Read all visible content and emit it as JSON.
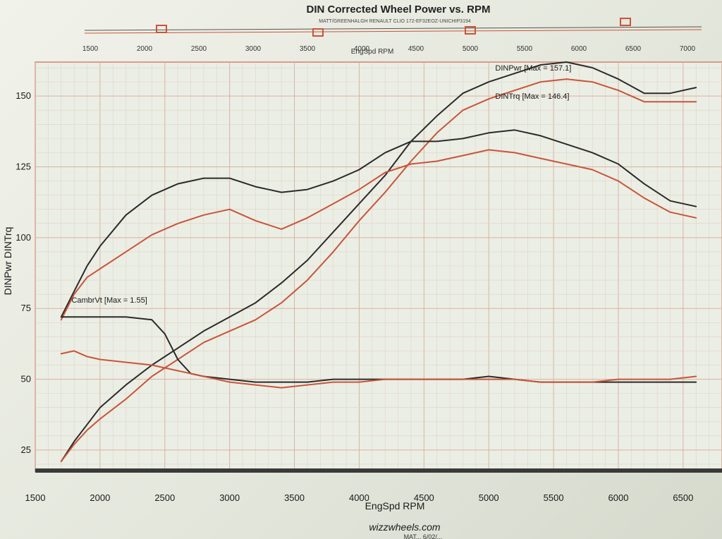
{
  "page": {
    "title": "DIN Corrected Wheel Power vs. RPM",
    "subtitle": "MATT/GREENHALGH RENAULT CLIO 172-EF32EOZ-UNICHIP3194",
    "top_axis_label": "EngSpd RPM",
    "top_ticks": [
      "1500",
      "2000",
      "2500",
      "3000",
      "3500",
      "4000",
      "4500",
      "5000",
      "5500",
      "6000",
      "6500",
      "7000"
    ],
    "footer": "wizzwheels.com",
    "footer_small": "MAT... 6/02/..."
  },
  "chart_data": {
    "type": "line",
    "title": "DIN Corrected Wheel Power vs. RPM",
    "xlabel": "EngSpd RPM",
    "ylabel": "DINPwr DINTrq",
    "xlim": [
      1500,
      6800
    ],
    "ylim": [
      18,
      162
    ],
    "x_ticks": [
      1500,
      2000,
      2500,
      3000,
      3500,
      4000,
      4500,
      5000,
      5500,
      6000,
      6500
    ],
    "y_ticks": [
      25,
      50,
      75,
      100,
      125,
      150
    ],
    "grid": true,
    "annotations": [
      {
        "text": "DINPwr [Max = 157.1]",
        "x": 5050,
        "y": 159
      },
      {
        "text": "DINTrq [Max = 146.4]",
        "x": 5050,
        "y": 149
      },
      {
        "text": "CambrVt [Max = 1.55]",
        "x": 1780,
        "y": 77
      }
    ],
    "series": [
      {
        "color": "#2a2a2a",
        "x": [
          1700,
          1800,
          1900,
          2000,
          2200,
          2400,
          2600,
          2800,
          3000,
          3200,
          3400,
          3600,
          3800,
          4000,
          4200,
          4400,
          4600,
          4800,
          5000,
          5200,
          5400,
          5600,
          5800,
          6000,
          6200,
          6400,
          6600
        ],
        "values": [
          21,
          28,
          34,
          40,
          48,
          55,
          61,
          67,
          72,
          77,
          84,
          92,
          102,
          112,
          122,
          134,
          143,
          151,
          155,
          158,
          161,
          162,
          160,
          156,
          151,
          151,
          153
        ]
      },
      {
        "color": "#c8553a",
        "x": [
          1700,
          1800,
          1900,
          2000,
          2200,
          2400,
          2600,
          2800,
          3000,
          3200,
          3400,
          3600,
          3800,
          4000,
          4200,
          4400,
          4600,
          4800,
          5000,
          5200,
          5400,
          5600,
          5800,
          6000,
          6200,
          6400,
          6600
        ],
        "values": [
          21,
          27,
          32,
          36,
          43,
          51,
          57,
          63,
          67,
          71,
          77,
          85,
          95,
          106,
          116,
          127,
          137,
          145,
          149,
          152,
          155,
          156,
          155,
          152,
          148,
          148,
          148
        ]
      },
      {
        "color": "#2a2a2a",
        "x": [
          1700,
          1800,
          1900,
          2000,
          2200,
          2400,
          2600,
          2800,
          3000,
          3200,
          3400,
          3600,
          3800,
          4000,
          4200,
          4400,
          4600,
          4800,
          5000,
          5200,
          5400,
          5600,
          5800,
          6000,
          6200,
          6400,
          6600
        ],
        "values": [
          72,
          81,
          90,
          97,
          108,
          115,
          119,
          121,
          121,
          118,
          116,
          117,
          120,
          124,
          130,
          134,
          134,
          135,
          137,
          138,
          136,
          133,
          130,
          126,
          119,
          113,
          111
        ]
      },
      {
        "color": "#c8553a",
        "x": [
          1700,
          1800,
          1900,
          2000,
          2200,
          2400,
          2600,
          2800,
          3000,
          3200,
          3400,
          3600,
          3800,
          4000,
          4200,
          4400,
          4600,
          4800,
          5000,
          5200,
          5400,
          5600,
          5800,
          6000,
          6200,
          6400,
          6600
        ],
        "values": [
          71,
          80,
          86,
          89,
          95,
          101,
          105,
          108,
          110,
          106,
          103,
          107,
          112,
          117,
          123,
          126,
          127,
          129,
          131,
          130,
          128,
          126,
          124,
          120,
          114,
          109,
          107
        ]
      },
      {
        "color": "#2a2a2a",
        "x": [
          1700,
          1800,
          1900,
          2000,
          2200,
          2400,
          2500,
          2600,
          2700,
          2800,
          3000,
          3200,
          3400,
          3600,
          3800,
          4000,
          4200,
          4400,
          4600,
          4800,
          5000,
          5200,
          5400,
          5600,
          5800,
          6000,
          6200,
          6400,
          6600
        ],
        "values": [
          72,
          72,
          72,
          72,
          72,
          71,
          66,
          57,
          52,
          51,
          50,
          49,
          49,
          49,
          50,
          50,
          50,
          50,
          50,
          50,
          51,
          50,
          49,
          49,
          49,
          49,
          49,
          49,
          49
        ]
      },
      {
        "color": "#c8553a",
        "x": [
          1700,
          1800,
          1900,
          2000,
          2200,
          2400,
          2600,
          2800,
          3000,
          3200,
          3400,
          3600,
          3800,
          4000,
          4200,
          4400,
          4600,
          4800,
          5000,
          5200,
          5400,
          5600,
          5800,
          6000,
          6200,
          6400,
          6600
        ],
        "values": [
          59,
          60,
          58,
          57,
          56,
          55,
          53,
          51,
          49,
          48,
          47,
          48,
          49,
          49,
          50,
          50,
          50,
          50,
          50,
          50,
          49,
          49,
          49,
          50,
          50,
          50,
          51
        ]
      }
    ]
  }
}
